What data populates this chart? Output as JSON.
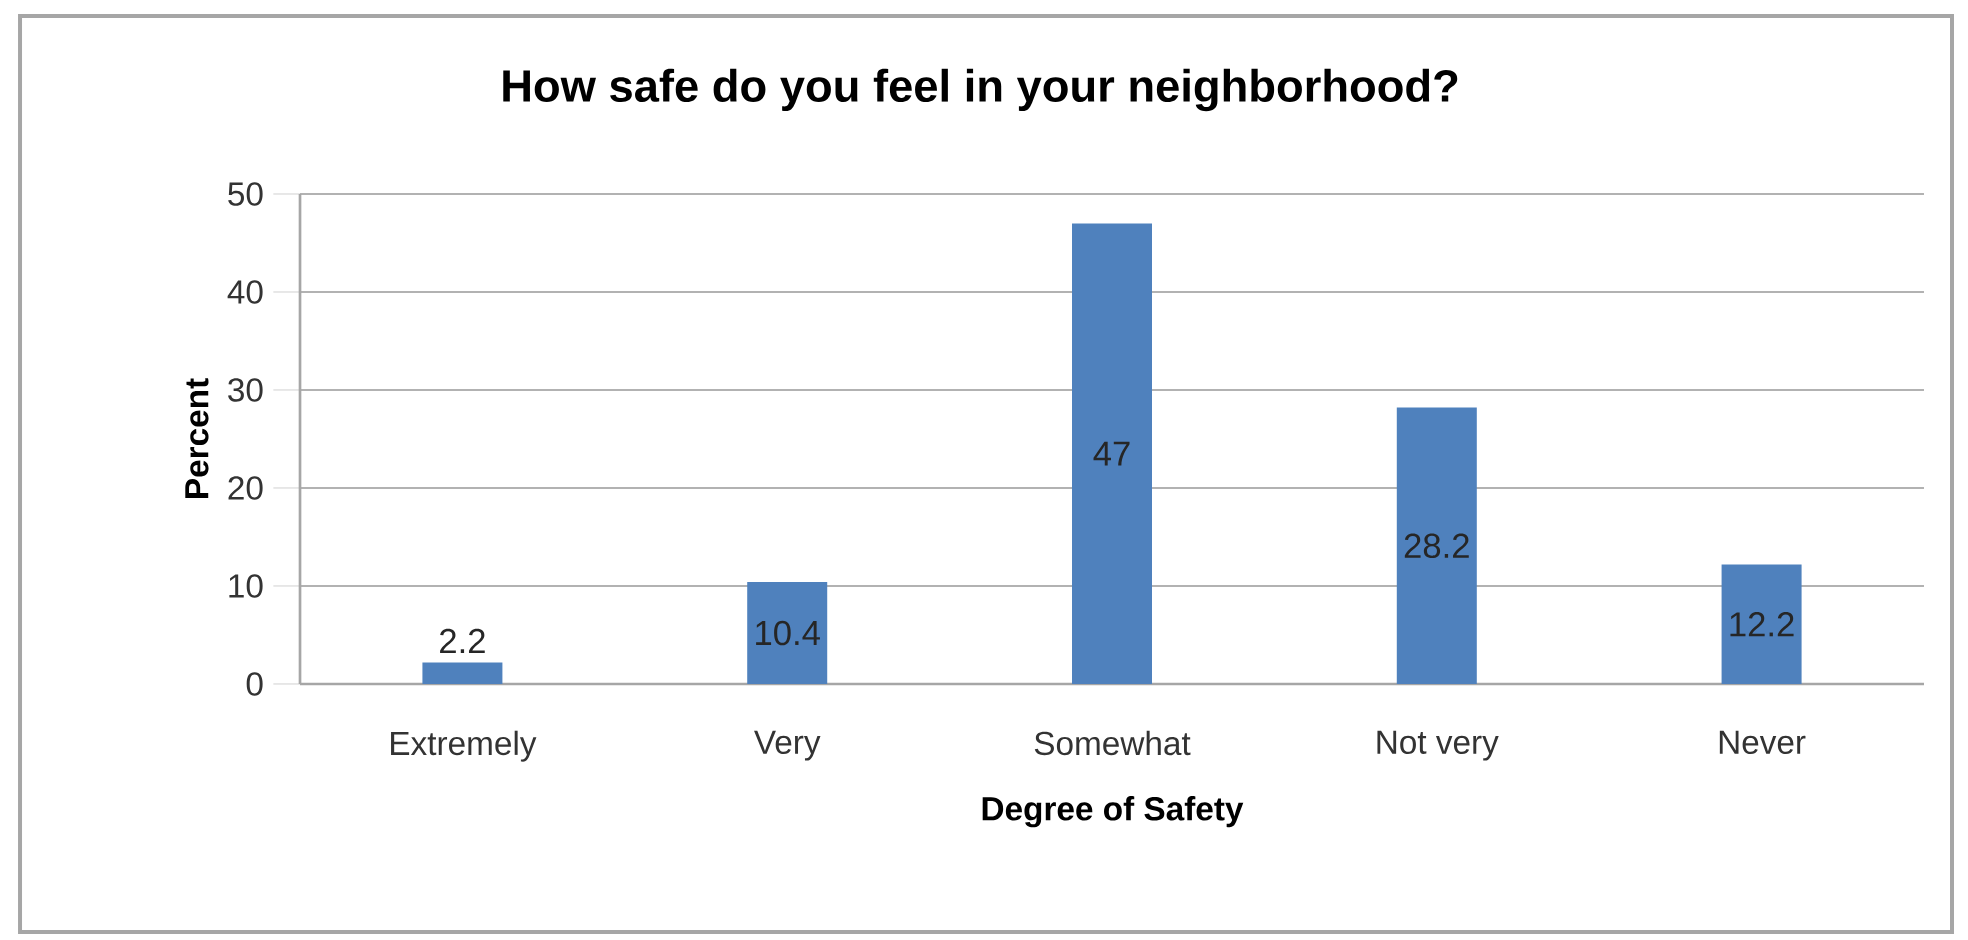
{
  "chart_data": {
    "type": "bar",
    "title": "How safe do you feel in your neighborhood?",
    "xlabel": "Degree of Safety",
    "ylabel": "Percent",
    "categories": [
      "Extremely",
      "Very",
      "Somewhat",
      "Not very",
      "Never"
    ],
    "values": [
      2.2,
      10.4,
      47,
      28.2,
      12.2
    ],
    "color": "#4f81bd",
    "ylim": [
      0,
      50
    ],
    "yticks": [
      0,
      10,
      20,
      30,
      40,
      50
    ],
    "grid": "y",
    "data_labels": true
  }
}
